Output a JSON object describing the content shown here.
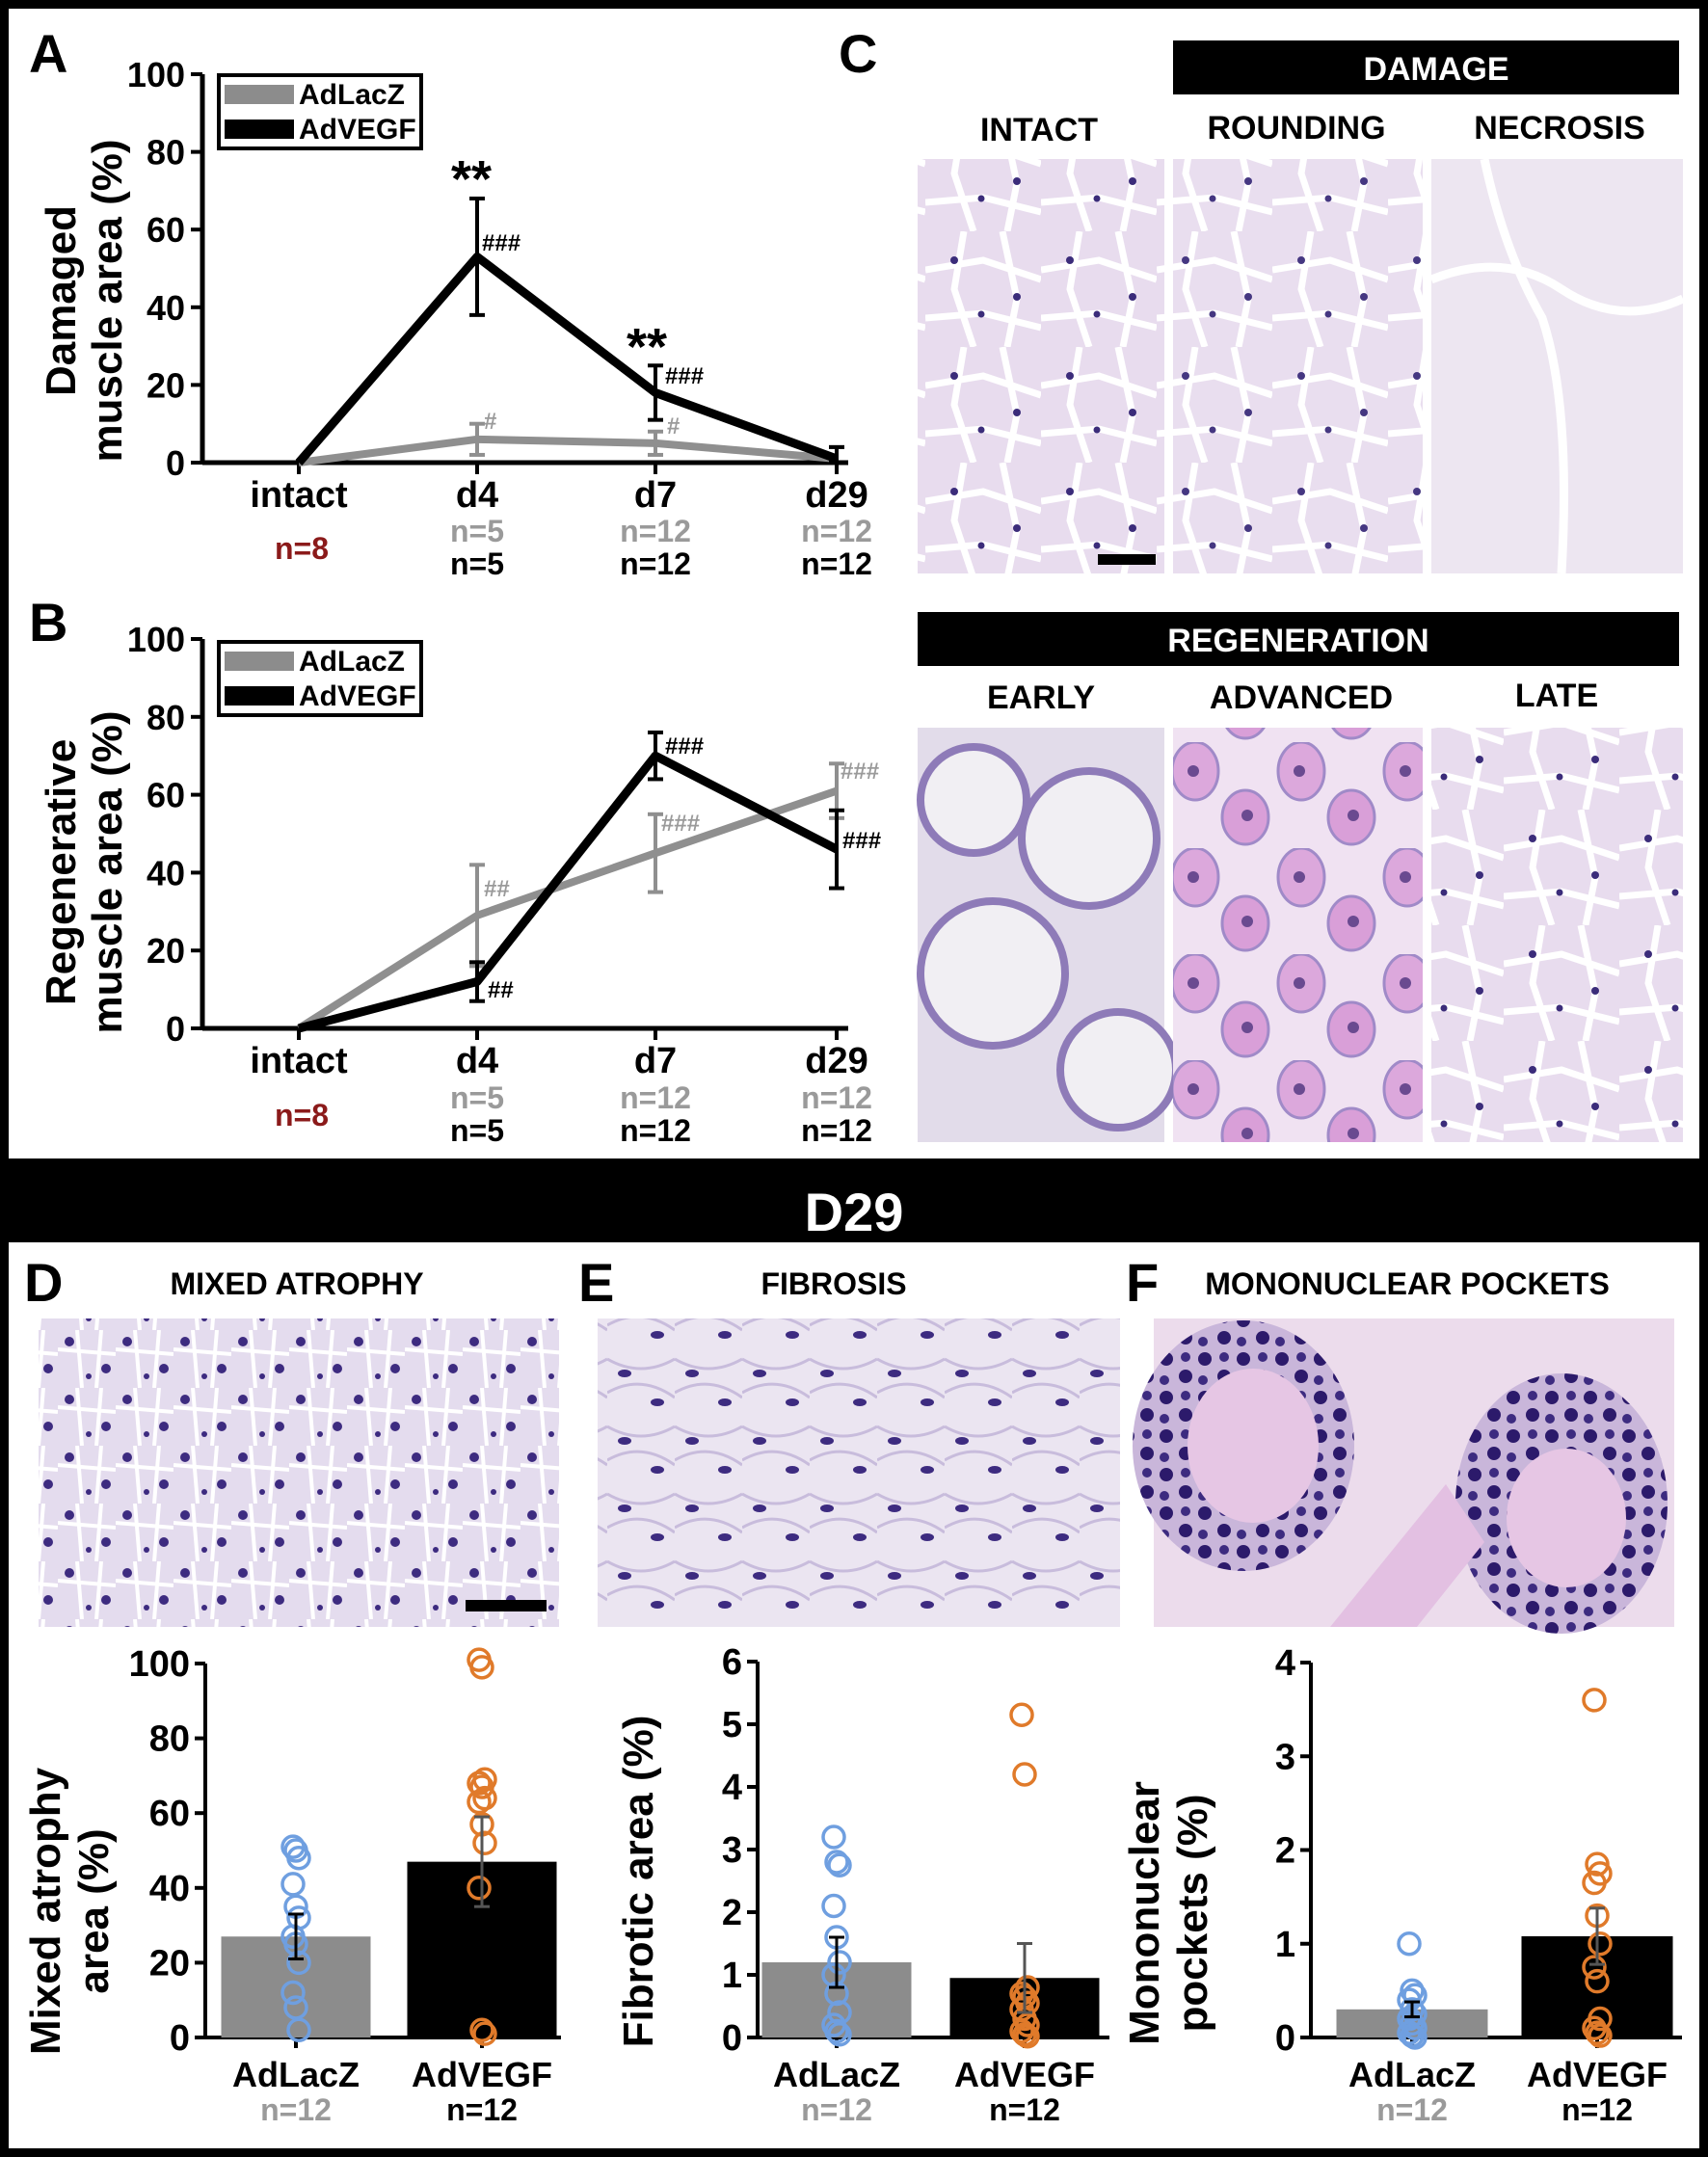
{
  "colors": {
    "adlacz": "#8c8c8c",
    "adlacz_line": "#8f8f8f",
    "advegf": "#000000",
    "intact_n": "#8b1a1a",
    "gray_n": "#9a9a9a",
    "blue_dots": "#6f9fe0",
    "orange_dots": "#e07a2a",
    "he_light": "#e9dcee",
    "he_pink": "#e3b6e2",
    "he_nuclei": "#3a2a7a"
  },
  "panels": {
    "A": {
      "letter": "A",
      "ylabel_line1": "Damaged",
      "ylabel_line2": "muscle area (%)",
      "legend": [
        "AdLacZ",
        "AdVEGF"
      ],
      "ticks_y": [
        "0",
        "20",
        "40",
        "60",
        "80",
        "100"
      ],
      "categories": [
        "intact",
        "d4",
        "d7",
        "d29"
      ],
      "n_intact": "n=8",
      "n_gray": [
        "n=5",
        "n=12",
        "n=12"
      ],
      "n_black": [
        "n=5",
        "n=12",
        "n=12"
      ],
      "annot_star_d4": "**",
      "annot_star_d7": "**",
      "annot_black_d4": "###",
      "annot_black_d7": "###",
      "annot_gray_d4": "#",
      "annot_gray_d7": "#"
    },
    "B": {
      "letter": "B",
      "ylabel_line1": "Regenerative",
      "ylabel_line2": "muscle area (%)",
      "legend": [
        "AdLacZ",
        "AdVEGF"
      ],
      "ticks_y": [
        "0",
        "20",
        "40",
        "60",
        "80",
        "100"
      ],
      "categories": [
        "intact",
        "d4",
        "d7",
        "d29"
      ],
      "n_intact": "n=8",
      "n_gray": [
        "n=5",
        "n=12",
        "n=12"
      ],
      "n_black": [
        "n=5",
        "n=12",
        "n=12"
      ],
      "annot_gray_d4": "##",
      "annot_black_d4": "##",
      "annot_black_d7": "###",
      "annot_gray_d7": "###",
      "annot_gray_d29": "###",
      "annot_black_d29": "###"
    },
    "C": {
      "letter": "C",
      "damage_header": "DAMAGE",
      "regen_header": "REGENERATION",
      "top_labels": [
        "INTACT",
        "ROUNDING",
        "NECROSIS"
      ],
      "bottom_labels": [
        "EARLY",
        "ADVANCED",
        "LATE"
      ]
    },
    "D29": {
      "title": "D29"
    },
    "D": {
      "letter": "D",
      "title": "MIXED ATROPHY",
      "ylabel_line1": "Mixed atrophy",
      "ylabel_line2": "area (%)",
      "ticks_y": [
        "0",
        "20",
        "40",
        "60",
        "80",
        "100"
      ],
      "groups": [
        "AdLacZ",
        "AdVEGF"
      ],
      "n": [
        "n=12",
        "n=12"
      ]
    },
    "E": {
      "letter": "E",
      "title": "FIBROSIS",
      "ylabel_line1": "Fibrotic area (%)",
      "ticks_y": [
        "0",
        "1",
        "2",
        "3",
        "4",
        "5",
        "6"
      ],
      "groups": [
        "AdLacZ",
        "AdVEGF"
      ],
      "n": [
        "n=12",
        "n=12"
      ]
    },
    "F": {
      "letter": "F",
      "title": "MONONUCLEAR POCKETS",
      "ylabel_line1": "Mononuclear",
      "ylabel_line2": "pockets (%)",
      "ticks_y": [
        "0",
        "1",
        "2",
        "3",
        "4"
      ],
      "groups": [
        "AdLacZ",
        "AdVEGF"
      ],
      "n": [
        "n=12",
        "n=12"
      ]
    }
  },
  "chart_data": [
    {
      "panel": "A",
      "type": "line",
      "categories": [
        "intact",
        "d4",
        "d7",
        "d29"
      ],
      "ylabel": "Damaged muscle area (%)",
      "ylim": [
        0,
        100
      ],
      "legend_placement": "top-left",
      "series": [
        {
          "name": "AdLacZ",
          "values": [
            0,
            6,
            5,
            1
          ],
          "errors": [
            0,
            4,
            3,
            3
          ]
        },
        {
          "name": "AdVEGF",
          "values": [
            0,
            53,
            18,
            1
          ],
          "errors": [
            0,
            15,
            7,
            3
          ]
        }
      ]
    },
    {
      "panel": "B",
      "type": "line",
      "categories": [
        "intact",
        "d4",
        "d7",
        "d29"
      ],
      "ylabel": "Regenerative muscle area (%)",
      "ylim": [
        0,
        100
      ],
      "legend_placement": "top-left",
      "series": [
        {
          "name": "AdLacZ",
          "values": [
            0,
            29,
            45,
            61
          ],
          "errors": [
            0,
            13,
            10,
            7
          ]
        },
        {
          "name": "AdVEGF",
          "values": [
            0,
            12,
            70,
            46
          ],
          "errors": [
            0,
            5,
            6,
            10
          ]
        }
      ]
    },
    {
      "panel": "D",
      "type": "bar",
      "categories": [
        "AdLacZ",
        "AdVEGF"
      ],
      "ylabel": "Mixed atrophy area (%)",
      "ylim": [
        0,
        100
      ],
      "values": [
        27,
        47
      ],
      "errors": [
        6,
        12
      ],
      "points": [
        [
          51,
          50,
          48,
          41,
          35,
          32,
          27,
          25,
          20,
          12,
          8,
          2
        ],
        [
          101,
          99,
          69,
          68,
          67,
          64,
          63,
          57,
          52,
          40,
          2,
          1
        ]
      ]
    },
    {
      "panel": "E",
      "type": "bar",
      "categories": [
        "AdLacZ",
        "AdVEGF"
      ],
      "ylabel": "Fibrotic area (%)",
      "ylim": [
        0,
        6
      ],
      "values": [
        1.2,
        0.95
      ],
      "errors": [
        0.4,
        0.55
      ],
      "points": [
        [
          3.2,
          2.8,
          2.75,
          2.1,
          1.6,
          1.2,
          1.0,
          0.7,
          0.4,
          0.2,
          0.1,
          0.05
        ],
        [
          5.15,
          4.2,
          0.8,
          0.7,
          0.65,
          0.55,
          0.45,
          0.3,
          0.2,
          0.1,
          0.05,
          0.02
        ]
      ]
    },
    {
      "panel": "F",
      "type": "bar",
      "categories": [
        "AdLacZ",
        "AdVEGF"
      ],
      "ylabel": "Mononuclear pockets (%)",
      "ylim": [
        0,
        4
      ],
      "values": [
        0.3,
        1.08
      ],
      "errors": [
        0.08,
        0.3
      ],
      "points": [
        [
          1.0,
          0.5,
          0.45,
          0.4,
          0.3,
          0.25,
          0.2,
          0.15,
          0.1,
          0.05,
          0.02,
          0.0
        ],
        [
          3.6,
          1.85,
          1.75,
          1.65,
          1.3,
          1.0,
          0.75,
          0.6,
          0.2,
          0.1,
          0.05,
          0.02
        ]
      ]
    }
  ]
}
